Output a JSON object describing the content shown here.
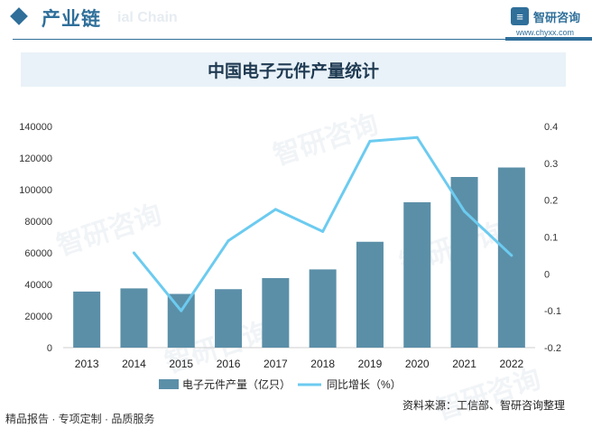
{
  "header": {
    "section_title": "产业链",
    "watermark_text": "ial Chain",
    "logo_name": "智研咨询",
    "site_url": "www.chyxx.com"
  },
  "watermarks": [
    "智研咨询",
    "智研咨询",
    "智研咨询",
    "智研咨询",
    "智研咨询"
  ],
  "footer": {
    "left_text": "精品报告 · 专项定制 · 品质服务",
    "source_text": "资料来源：工信部、智研咨询整理"
  },
  "colors": {
    "bar": "#5b8fa8",
    "line": "#6ccbf0",
    "brand": "#2f6f9a"
  },
  "chart_data": {
    "type": "bar",
    "title": "中国电子元件产量统计",
    "categories": [
      "2013",
      "2014",
      "2015",
      "2016",
      "2017",
      "2018",
      "2019",
      "2020",
      "2021",
      "2022"
    ],
    "series": [
      {
        "name": "电子元件产量（亿只）",
        "type": "bar",
        "axis": "left",
        "values": [
          35500,
          37500,
          34000,
          37000,
          44000,
          49500,
          67000,
          92000,
          108000,
          114000
        ]
      },
      {
        "name": "同比增长（%）",
        "type": "line",
        "axis": "right",
        "values": [
          null,
          0.057,
          -0.1,
          0.09,
          0.175,
          0.115,
          0.36,
          0.37,
          0.17,
          0.05
        ]
      }
    ],
    "y_left": {
      "min": 0,
      "max": 140000,
      "ticks": [
        "0",
        "20000",
        "40000",
        "60000",
        "80000",
        "100000",
        "120000",
        "140000"
      ]
    },
    "y_right": {
      "min": -0.2,
      "max": 0.4,
      "ticks": [
        "-0.2",
        "-0.1",
        "0",
        "0.1",
        "0.2",
        "0.3",
        "0.4"
      ]
    },
    "legend_position": "bottom",
    "grid": false
  }
}
